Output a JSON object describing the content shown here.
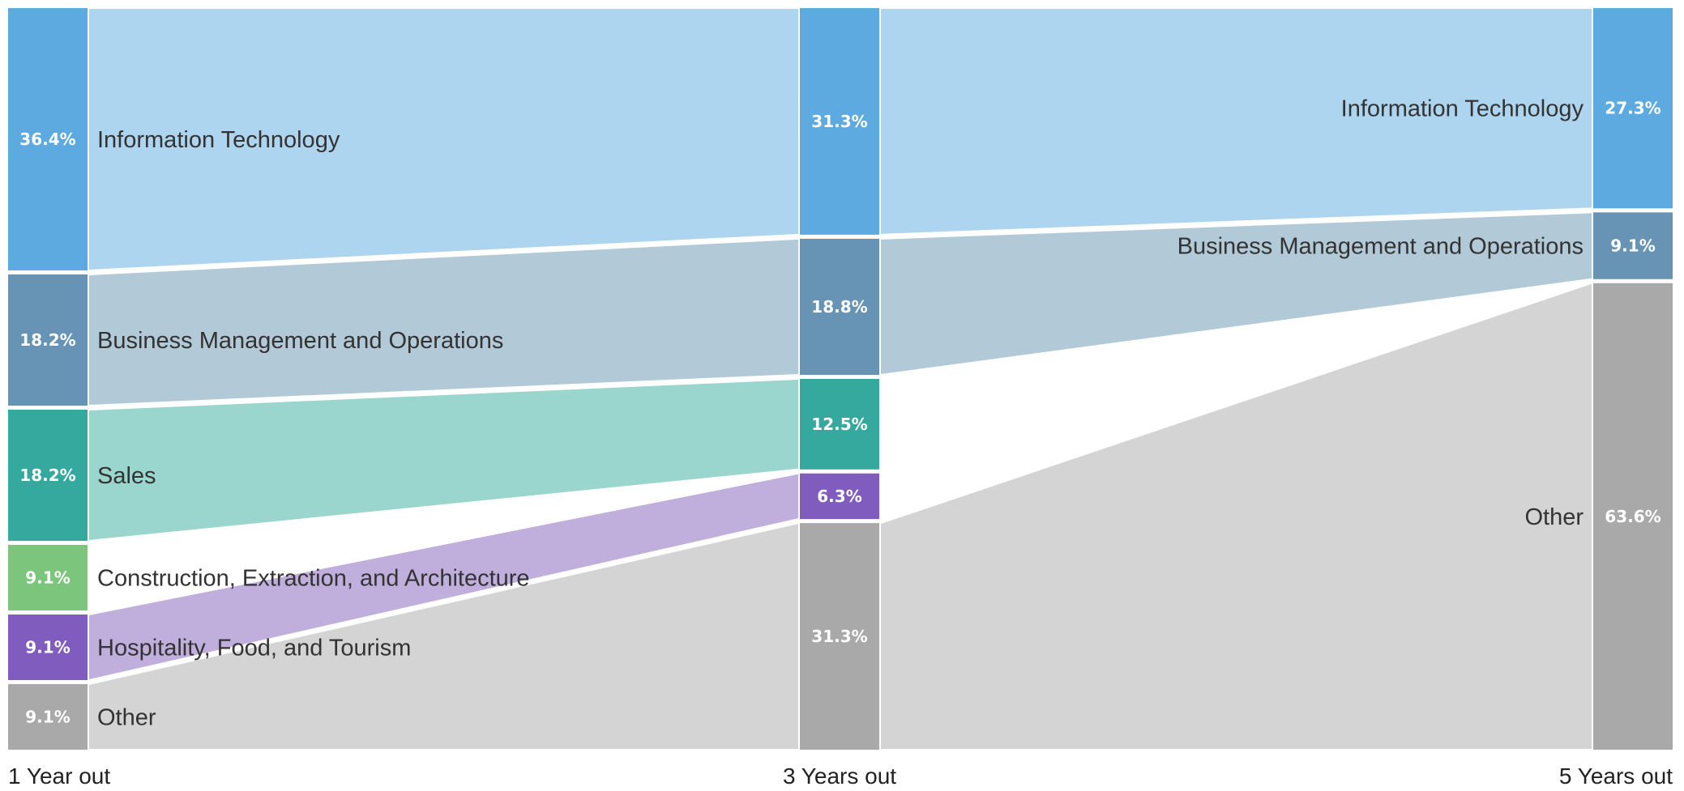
{
  "chart_data": {
    "type": "sankey",
    "columns": [
      "1 Year out",
      "3 Years out",
      "5 Years out"
    ],
    "colors": {
      "Information Technology": "#5DAAE0",
      "Business Management and Operations": "#6794B4",
      "Sales": "#35A99D",
      "Construction, Extraction, and Architecture": "#7CC57D",
      "Hospitality, Food, and Tourism": "#7F5CBE",
      "Other": "#A9A9A9"
    },
    "flow_colors": {
      "Information Technology": "#AED5EF",
      "Business Management and Operations": "#B2C9D8",
      "Sales": "#9AD6CE",
      "Construction, Extraction, and Architecture": "#BDE2BE",
      "Hospitality, Food, and Tourism": "#C0AEDD",
      "Other": "#D4D4D4"
    },
    "stages": [
      {
        "nodes": [
          {
            "name": "Information Technology",
            "value": 36.4,
            "label": "36.4%"
          },
          {
            "name": "Business Management and Operations",
            "value": 18.2,
            "label": "18.2%"
          },
          {
            "name": "Sales",
            "value": 18.2,
            "label": "18.2%"
          },
          {
            "name": "Construction, Extraction, and Architecture",
            "value": 9.1,
            "label": "9.1%"
          },
          {
            "name": "Hospitality, Food, and Tourism",
            "value": 9.1,
            "label": "9.1%"
          },
          {
            "name": "Other",
            "value": 9.1,
            "label": "9.1%"
          }
        ]
      },
      {
        "nodes": [
          {
            "name": "Information Technology",
            "value": 31.3,
            "label": "31.3%"
          },
          {
            "name": "Business Management and Operations",
            "value": 18.8,
            "label": "18.8%"
          },
          {
            "name": "Sales",
            "value": 12.5,
            "label": "12.5%"
          },
          {
            "name": "Hospitality, Food, and Tourism",
            "value": 6.3,
            "label": "6.3%"
          },
          {
            "name": "Other",
            "value": 31.3,
            "label": "31.3%"
          }
        ]
      },
      {
        "nodes": [
          {
            "name": "Information Technology",
            "value": 27.3,
            "label": "27.3%"
          },
          {
            "name": "Business Management and Operations",
            "value": 9.1,
            "label": "9.1%"
          },
          {
            "name": "Other",
            "value": 63.6,
            "label": "63.6%"
          }
        ]
      }
    ],
    "flows": [
      {
        "from_stage": 0,
        "from": "Information Technology",
        "to": "Information Technology",
        "color_of": "Information Technology"
      },
      {
        "from_stage": 0,
        "from": "Business Management and Operations",
        "to": "Business Management and Operations",
        "color_of": "Business Management and Operations"
      },
      {
        "from_stage": 0,
        "from": "Sales",
        "to": "Sales",
        "color_of": "Sales"
      },
      {
        "from_stage": 0,
        "from": "Hospitality, Food, and Tourism",
        "to": "Hospitality, Food, and Tourism",
        "color_of": "Hospitality, Food, and Tourism"
      },
      {
        "from_stage": 0,
        "from": "Other",
        "to": "Other",
        "color_of": "Other"
      },
      {
        "from_stage": 1,
        "from": "Information Technology",
        "to": "Information Technology",
        "color_of": "Information Technology"
      },
      {
        "from_stage": 1,
        "from": "Business Management and Operations",
        "to": "Business Management and Operations",
        "color_of": "Business Management and Operations"
      },
      {
        "from_stage": 1,
        "from": "Other",
        "to": "Other",
        "color_of": "Other"
      }
    ]
  }
}
